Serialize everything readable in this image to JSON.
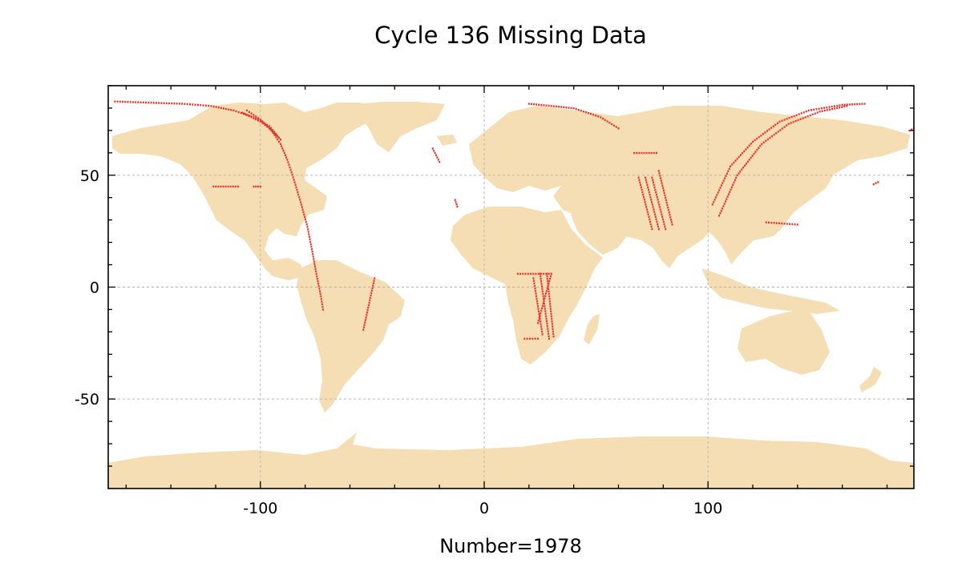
{
  "title": "Cycle 136 Missing Data",
  "xlabel": "Number=1978",
  "colors": {
    "land": "#f5deb3",
    "missing": "#e8332a",
    "grid": "#b0b0b0",
    "frame": "#000000"
  },
  "axes": {
    "xlim": [
      -168,
      192
    ],
    "ylim": [
      -90,
      90
    ],
    "xticks": [
      {
        "value": -100,
        "label": "-100"
      },
      {
        "value": 0,
        "label": "0"
      },
      {
        "value": 100,
        "label": "100"
      }
    ],
    "yticks": [
      {
        "value": 50,
        "label": "50"
      },
      {
        "value": 0,
        "label": "0"
      },
      {
        "value": -50,
        "label": "-50"
      }
    ],
    "grid": true,
    "minor_ticks": true
  },
  "chart_data": {
    "type": "scatter",
    "title": "Cycle 136 Missing Data",
    "xlabel": "Number=1978",
    "ylabel": "",
    "xlim": [
      -168,
      192
    ],
    "ylim": [
      -90,
      90
    ],
    "grid": true,
    "series": [
      {
        "tracks": [
          [
            [
              -165,
              83
            ],
            [
              -150,
              82.5
            ],
            [
              -135,
              82
            ],
            [
              -122,
              81
            ],
            [
              -112,
              79
            ],
            [
              -103,
              76
            ],
            [
              -96,
              72
            ],
            [
              -91,
              66
            ]
          ],
          [
            [
              -108,
              78
            ],
            [
              -104,
              76
            ],
            [
              -100,
              74
            ],
            [
              -96,
              71
            ],
            [
              -93,
              68
            ],
            [
              -91,
              66
            ]
          ],
          [
            [
              -106,
              79
            ],
            [
              -100,
              75
            ],
            [
              -95,
              70
            ],
            [
              -91,
              64
            ],
            [
              -88,
              57
            ],
            [
              -85,
              48
            ],
            [
              -82,
              38
            ],
            [
              -79,
              27
            ],
            [
              -77,
              17
            ],
            [
              -75,
              6
            ],
            [
              -73,
              -4
            ],
            [
              -72,
              -10
            ]
          ],
          [
            [
              -121,
              45
            ],
            [
              -110,
              45
            ]
          ],
          [
            [
              -103,
              45
            ],
            [
              -100,
              45
            ]
          ],
          [
            [
              -49,
              4
            ],
            [
              -54,
              -19
            ]
          ],
          [
            [
              -23,
              62
            ],
            [
              -20,
              56
            ]
          ],
          [
            [
              -13,
              39
            ],
            [
              -12,
              36
            ]
          ],
          [
            [
              20,
              82
            ],
            [
              40,
              80
            ],
            [
              52,
              76
            ],
            [
              60,
              71
            ]
          ],
          [
            [
              67,
              60
            ],
            [
              77,
              60
            ]
          ],
          [
            [
              69,
              49
            ],
            [
              75,
              26
            ]
          ],
          [
            [
              72,
              49
            ],
            [
              78,
              26
            ]
          ],
          [
            [
              75,
              49
            ],
            [
              81,
              26
            ]
          ],
          [
            [
              78,
              52
            ],
            [
              84,
              28
            ]
          ],
          [
            [
              15,
              6
            ],
            [
              30,
              6
            ]
          ],
          [
            [
              22,
              4
            ],
            [
              26,
              -21
            ]
          ],
          [
            [
              25,
              6
            ],
            [
              29,
              -23
            ]
          ],
          [
            [
              28,
              6
            ],
            [
              31,
              -22
            ]
          ],
          [
            [
              30,
              6
            ],
            [
              24,
              -16
            ]
          ],
          [
            [
              18,
              -23
            ],
            [
              24,
              -23
            ]
          ],
          [
            [
              102,
              37
            ],
            [
              110,
              54
            ],
            [
              120,
              65
            ],
            [
              132,
              74
            ],
            [
              145,
              79
            ],
            [
              160,
              81.5
            ],
            [
              170,
              82
            ]
          ],
          [
            [
              105,
              32
            ],
            [
              113,
              50
            ],
            [
              124,
              64
            ],
            [
              136,
              73
            ],
            [
              150,
              78.5
            ],
            [
              162,
              81
            ]
          ],
          [
            [
              126,
              29
            ],
            [
              140,
              28
            ]
          ],
          [
            [
              174,
              46
            ],
            [
              176,
              47
            ]
          ],
          [
            [
              190,
              70
            ],
            [
              192,
              71
            ]
          ]
        ]
      }
    ]
  }
}
